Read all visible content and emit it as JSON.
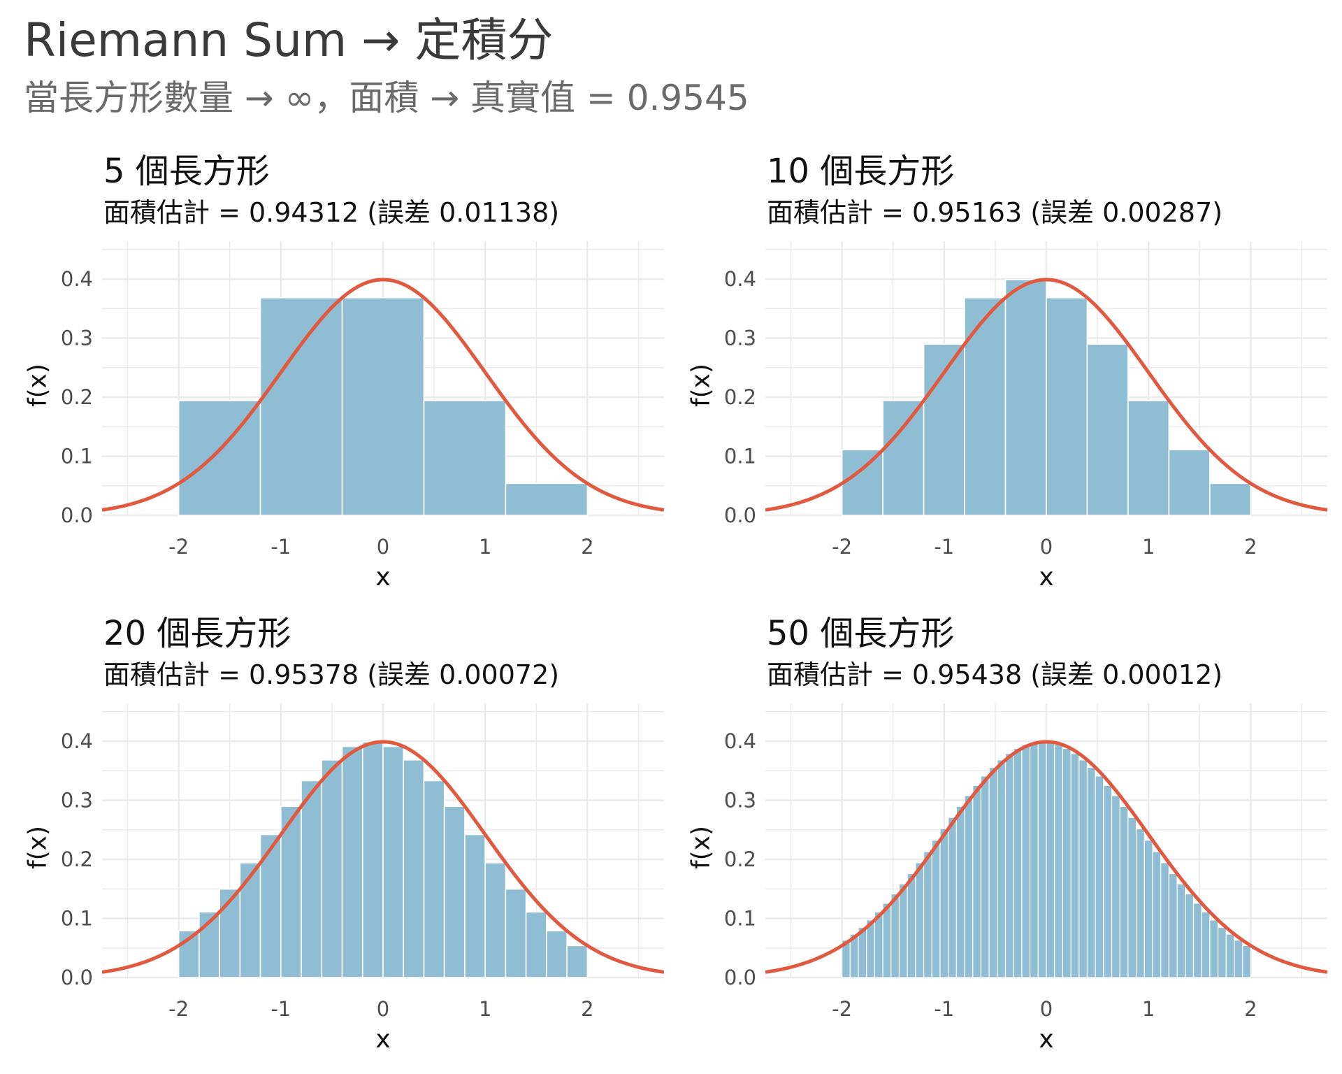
{
  "title": "Riemann Sum → 定積分",
  "subtitle": "當長方形數量 → ∞，面積 → 真實值 = 0.9545",
  "colors": {
    "bar": "#8fbdd3",
    "curve": "#e15a3f",
    "grid": "#ebebeb",
    "tick_text": "#4d4d4d"
  },
  "chart_data": [
    {
      "type": "bar",
      "title": "5 個長方形",
      "subtitle": "面積估計 = 0.94312 (誤差 0.01138)",
      "xlabel": "x",
      "ylabel": "f(x)",
      "n": 5,
      "interval": [
        -2,
        2
      ],
      "xlim": [
        -2.75,
        2.75
      ],
      "ylim": [
        0,
        0.4
      ],
      "xticks": [
        "-2",
        "-1",
        "0",
        "1",
        "2"
      ],
      "yticks": [
        "0.0",
        "0.1",
        "0.2",
        "0.3",
        "0.4"
      ],
      "curve": "standard normal density"
    },
    {
      "type": "bar",
      "title": "10 個長方形",
      "subtitle": "面積估計 = 0.95163 (誤差 0.00287)",
      "xlabel": "x",
      "ylabel": "f(x)",
      "n": 10,
      "interval": [
        -2,
        2
      ],
      "xlim": [
        -2.75,
        2.75
      ],
      "ylim": [
        0,
        0.4
      ],
      "xticks": [
        "-2",
        "-1",
        "0",
        "1",
        "2"
      ],
      "yticks": [
        "0.0",
        "0.1",
        "0.2",
        "0.3",
        "0.4"
      ],
      "curve": "standard normal density"
    },
    {
      "type": "bar",
      "title": "20 個長方形",
      "subtitle": "面積估計 = 0.95378 (誤差 0.00072)",
      "xlabel": "x",
      "ylabel": "f(x)",
      "n": 20,
      "interval": [
        -2,
        2
      ],
      "xlim": [
        -2.75,
        2.75
      ],
      "ylim": [
        0,
        0.4
      ],
      "xticks": [
        "-2",
        "-1",
        "0",
        "1",
        "2"
      ],
      "yticks": [
        "0.0",
        "0.1",
        "0.2",
        "0.3",
        "0.4"
      ],
      "curve": "standard normal density"
    },
    {
      "type": "bar",
      "title": "50 個長方形",
      "subtitle": "面積估計 = 0.95438 (誤差 0.00012)",
      "xlabel": "x",
      "ylabel": "f(x)",
      "n": 50,
      "interval": [
        -2,
        2
      ],
      "xlim": [
        -2.75,
        2.75
      ],
      "ylim": [
        0,
        0.4
      ],
      "xticks": [
        "-2",
        "-1",
        "0",
        "1",
        "2"
      ],
      "yticks": [
        "0.0",
        "0.1",
        "0.2",
        "0.3",
        "0.4"
      ],
      "curve": "standard normal density"
    }
  ]
}
